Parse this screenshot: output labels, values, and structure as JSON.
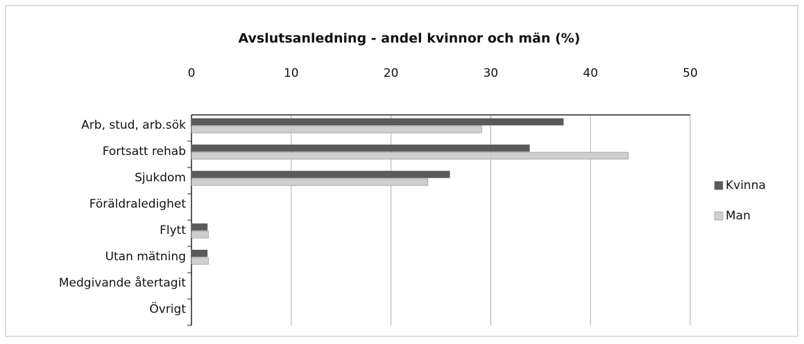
{
  "chart_data": {
    "type": "barh",
    "title": "Avslutsanledning - andel kvinnor och män (%)",
    "categories": [
      "Arb, stud, arb.sök",
      "Fortsatt rehab",
      "Sjukdom",
      "Föräldraledighet",
      "Flytt",
      "Utan mätning",
      "Medgivande återtagit",
      "Övrigt"
    ],
    "series": [
      {
        "name": "Kvinna",
        "color": "#5a5a5a",
        "values": [
          37.3,
          33.9,
          25.9,
          0,
          1.6,
          1.6,
          0,
          0
        ]
      },
      {
        "name": "Man",
        "color": "#cfcfcf",
        "values": [
          29.1,
          43.8,
          23.7,
          0,
          1.7,
          1.7,
          0,
          0
        ]
      }
    ],
    "xlim": [
      0,
      50
    ],
    "xticks": [
      0,
      10,
      20,
      30,
      40,
      50
    ],
    "grid": true,
    "legend": "right"
  }
}
